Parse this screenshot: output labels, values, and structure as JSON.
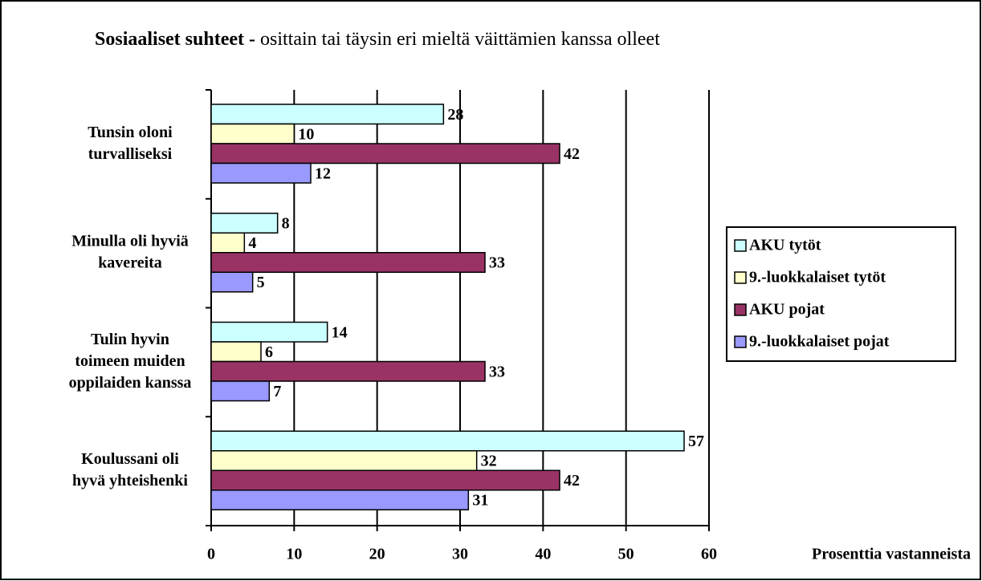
{
  "chart_data": {
    "type": "bar",
    "orientation": "horizontal",
    "title": "Sosiaaliset suhteet -",
    "subtitle": "osittain tai täysin eri mieltä väittämien kanssa olleet",
    "xlabel": "Prosenttia vastanneista",
    "categories": [
      [
        "Tunsin oloni",
        "turvalliseksi"
      ],
      [
        "Minulla oli hyviä",
        "kavereita"
      ],
      [
        "Tulin hyvin",
        "toimeen muiden",
        "oppilaiden kanssa"
      ],
      [
        "Koulussani oli",
        "hyvä yhteishenki"
      ]
    ],
    "series": [
      {
        "name": "AKU tytöt",
        "color": "#ccffff",
        "values": [
          28,
          8,
          14,
          57
        ]
      },
      {
        "name": "9.-luokkalaiset tytöt",
        "color": "#ffffcc",
        "values": [
          10,
          4,
          6,
          32
        ]
      },
      {
        "name": "AKU pojat",
        "color": "#993366",
        "values": [
          42,
          33,
          33,
          42
        ]
      },
      {
        "name": "9.-luokkalaiset pojat",
        "color": "#9999ff",
        "values": [
          12,
          5,
          7,
          31
        ]
      }
    ],
    "xlim": [
      0,
      60
    ],
    "xticks": [
      0,
      10,
      20,
      30,
      40,
      50,
      60
    ],
    "grid": true,
    "legend": "right"
  }
}
